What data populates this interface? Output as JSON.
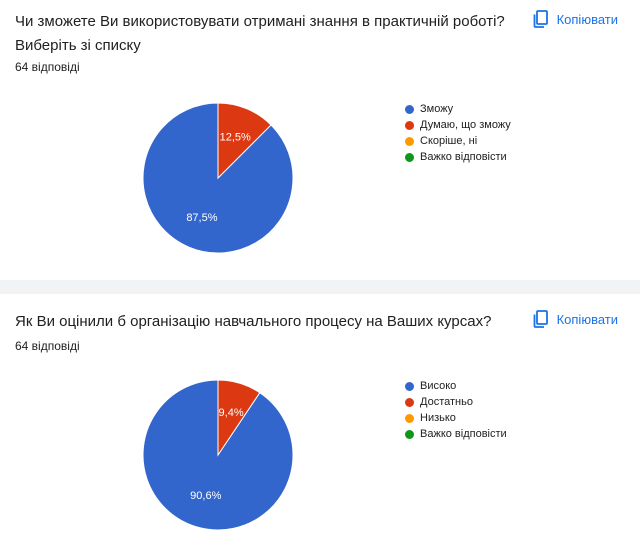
{
  "copy_label": "Копіювати",
  "icon": "copy-icon",
  "charts": [
    {
      "question": "Чи зможете Ви використовувати отримані знання в практичній роботі? Виберіть зі списку",
      "responses": "64 відповіді",
      "legend": [
        "Зможу",
        "Думаю, що зможу",
        "Скоріше, ні",
        "Важко відповісти"
      ],
      "data_labels": [
        "87,5%",
        "12,5%"
      ]
    },
    {
      "question": "Як Ви оцінили б організацію навчального процесу на Ваших курсах?",
      "responses": "64 відповіді",
      "legend": [
        "Високо",
        "Достатньо",
        "Низько",
        "Важко відповісти"
      ],
      "data_labels": [
        "90,6%",
        "9,4%"
      ]
    }
  ],
  "colors": [
    "#3366cc",
    "#dc3912",
    "#ff9900",
    "#109618"
  ],
  "chart_data": [
    {
      "type": "pie",
      "title": "Чи зможете Ви використовувати отримані знання в практичній роботі? Виберіть зі списку",
      "categories": [
        "Зможу",
        "Думаю, що зможу",
        "Скоріше, ні",
        "Важко відповісти"
      ],
      "values": [
        87.5,
        12.5,
        0,
        0
      ],
      "legend_position": "right"
    },
    {
      "type": "pie",
      "title": "Як Ви оцінили б організацію навчального процесу на Ваших курсах?",
      "categories": [
        "Високо",
        "Достатньо",
        "Низько",
        "Важко відповісти"
      ],
      "values": [
        90.6,
        9.4,
        0,
        0
      ],
      "legend_position": "right"
    }
  ]
}
